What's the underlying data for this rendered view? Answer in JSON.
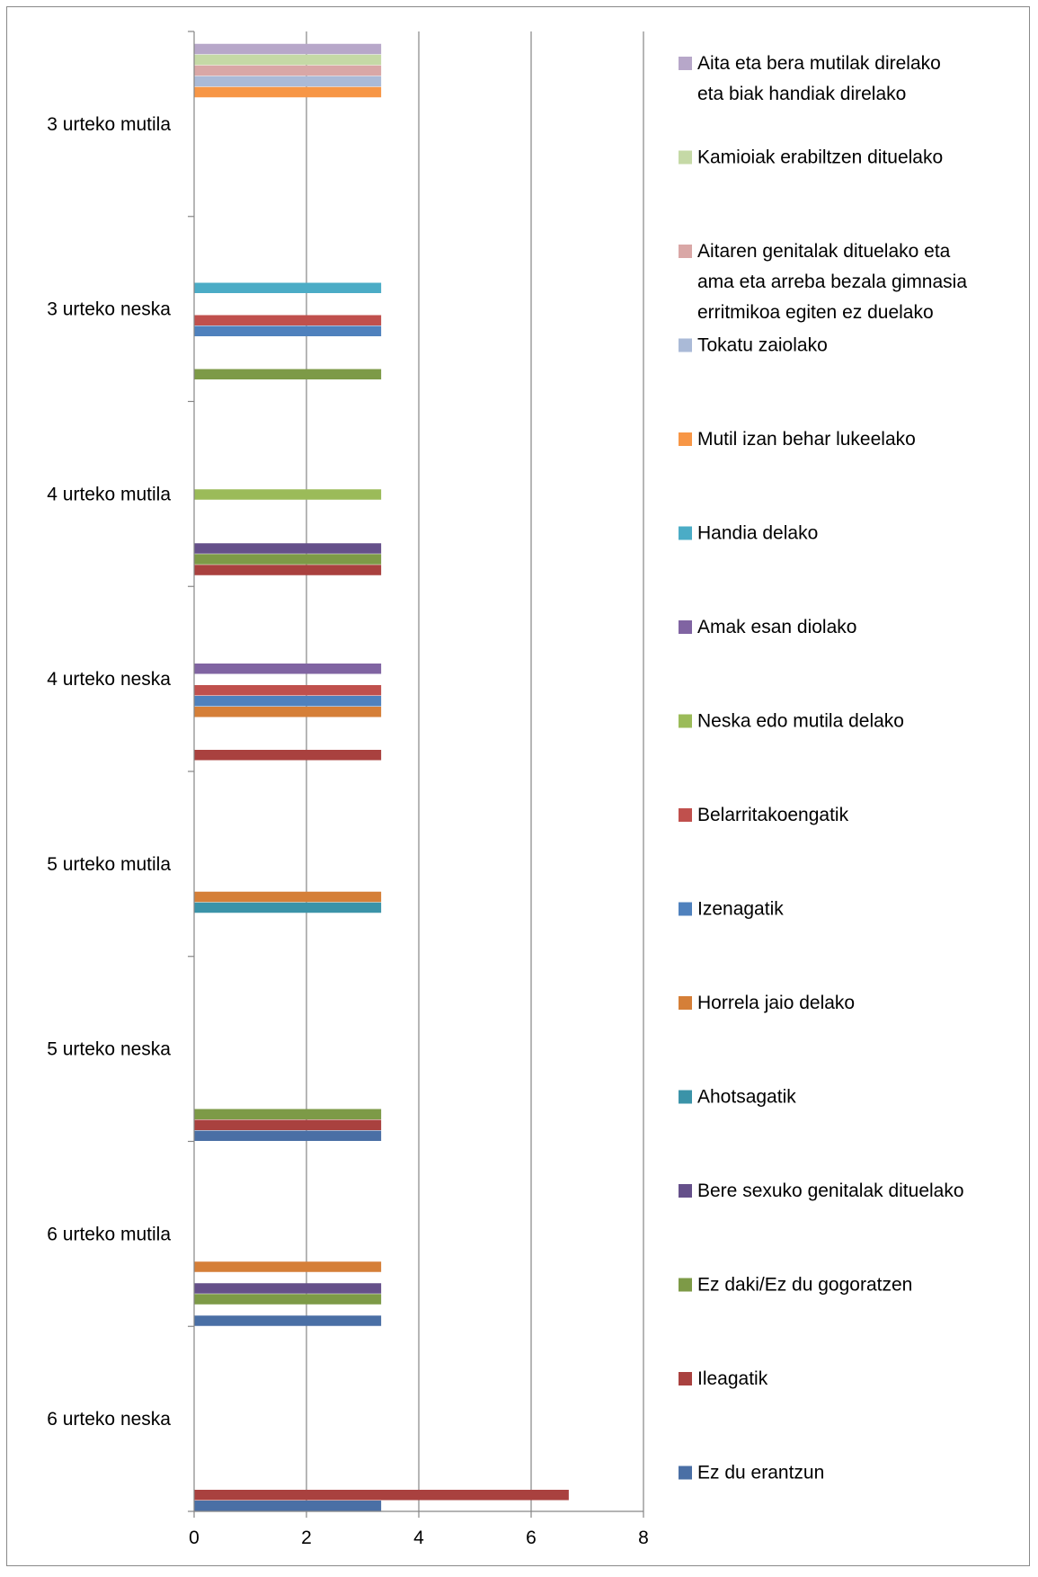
{
  "chart_data": {
    "type": "bar",
    "orientation": "horizontal",
    "title": "",
    "xlabel": "",
    "ylabel": "",
    "xlim": [
      0,
      8
    ],
    "x_ticks": [
      "0",
      "2",
      "4",
      "6",
      "8"
    ],
    "grid": true,
    "legend_position": "right",
    "categories": [
      "6 urteko neska",
      "6 urteko mutila",
      "5 urteko neska",
      "5 urteko mutila",
      "4 urteko neska",
      "4 urteko mutila",
      "3 urteko neska",
      "3 urteko mutila"
    ],
    "series": [
      {
        "name": "Ez du erantzun",
        "color": "#4a6fa5",
        "values": [
          3.33,
          3.33,
          3.33,
          0,
          0,
          0,
          0,
          0
        ]
      },
      {
        "name": "Ileagatik",
        "color": "#a9413f",
        "values": [
          6.67,
          0,
          3.33,
          0,
          3.33,
          3.33,
          0,
          0
        ]
      },
      {
        "name": "Ez daki/Ez du gogoratzen",
        "color": "#7d9a47",
        "values": [
          0,
          3.33,
          3.33,
          0,
          0,
          3.33,
          3.33,
          0
        ]
      },
      {
        "name": "Bere sexuko genitalak dituelako",
        "color": "#65508a",
        "values": [
          0,
          3.33,
          0,
          0,
          0,
          3.33,
          0,
          0
        ]
      },
      {
        "name": "Ahotsagatik",
        "color": "#3b93a8",
        "values": [
          0,
          0,
          0,
          3.33,
          0,
          0,
          0,
          0
        ]
      },
      {
        "name": "Horrela jaio delako",
        "color": "#d57f38",
        "values": [
          0,
          3.33,
          0,
          3.33,
          3.33,
          0,
          0,
          0
        ]
      },
      {
        "name": "Izenagatik",
        "color": "#4f81bd",
        "values": [
          0,
          0,
          0,
          0,
          3.33,
          0,
          3.33,
          0
        ]
      },
      {
        "name": "Belarritakoengatik",
        "color": "#c0504d",
        "values": [
          0,
          0,
          0,
          0,
          3.33,
          0,
          3.33,
          0
        ]
      },
      {
        "name": "Neska edo mutila delako",
        "color": "#9bbb59",
        "values": [
          0,
          0,
          0,
          0,
          0,
          3.33,
          0,
          0
        ]
      },
      {
        "name": "Amak esan diolako",
        "color": "#8064a2",
        "values": [
          0,
          0,
          0,
          0,
          3.33,
          0,
          0,
          0
        ]
      },
      {
        "name": "Handia delako",
        "color": "#4bacc6",
        "values": [
          0,
          0,
          0,
          0,
          0,
          0,
          3.33,
          0
        ]
      },
      {
        "name": "Mutil izan behar lukeelako",
        "color": "#f79646",
        "values": [
          0,
          0,
          0,
          0,
          0,
          0,
          0,
          3.33
        ]
      },
      {
        "name": "Tokatu zaiolako",
        "color": "#aabad7",
        "values": [
          0,
          0,
          0,
          0,
          0,
          0,
          0,
          3.33
        ]
      },
      {
        "name": "Aitaren genitalak dituelako eta ama eta arreba bezala gimnasia erritmikoa egiten ez duelako",
        "color": "#d9a7a6",
        "values": [
          0,
          0,
          0,
          0,
          0,
          0,
          0,
          3.33
        ]
      },
      {
        "name": "Kamioiak erabiltzen dituelako",
        "color": "#c5d9a6",
        "values": [
          0,
          0,
          0,
          0,
          0,
          0,
          0,
          3.33
        ]
      },
      {
        "name": "Aita eta bera mutilak direlako eta biak handiak direlako",
        "color": "#b7a7c9",
        "values": [
          0,
          0,
          0,
          0,
          0,
          0,
          0,
          3.33
        ]
      }
    ],
    "legend_entries": [
      {
        "label_lines": [
          "Aita eta bera mutilak direlako",
          "eta biak handiak direlako"
        ],
        "color": "#b7a7c9"
      },
      {
        "label_lines": [
          "Kamioiak erabiltzen dituelako"
        ],
        "color": "#c5d9a6"
      },
      {
        "label_lines": [
          "Aitaren genitalak dituelako eta",
          "ama eta arreba bezala gimnasia",
          "erritmikoa egiten ez duelako"
        ],
        "color": "#d9a7a6"
      },
      {
        "label_lines": [
          "Tokatu zaiolako"
        ],
        "color": "#aabad7"
      },
      {
        "label_lines": [
          "Mutil izan behar lukeelako"
        ],
        "color": "#f79646"
      },
      {
        "label_lines": [
          "Handia delako"
        ],
        "color": "#4bacc6"
      },
      {
        "label_lines": [
          "Amak esan diolako"
        ],
        "color": "#8064a2"
      },
      {
        "label_lines": [
          "Neska edo mutila delako"
        ],
        "color": "#9bbb59"
      },
      {
        "label_lines": [
          "Belarritakoengatik"
        ],
        "color": "#c0504d"
      },
      {
        "label_lines": [
          "Izenagatik"
        ],
        "color": "#4f81bd"
      },
      {
        "label_lines": [
          "Horrela jaio delako"
        ],
        "color": "#d57f38"
      },
      {
        "label_lines": [
          "Ahotsagatik"
        ],
        "color": "#3b93a8"
      },
      {
        "label_lines": [
          "Bere sexuko genitalak dituelako"
        ],
        "color": "#65508a"
      },
      {
        "label_lines": [
          "Ez daki/Ez du gogoratzen"
        ],
        "color": "#7d9a47"
      },
      {
        "label_lines": [
          "Ileagatik"
        ],
        "color": "#a9413f"
      },
      {
        "label_lines": [
          "Ez du erantzun"
        ],
        "color": "#4a6fa5"
      }
    ]
  }
}
